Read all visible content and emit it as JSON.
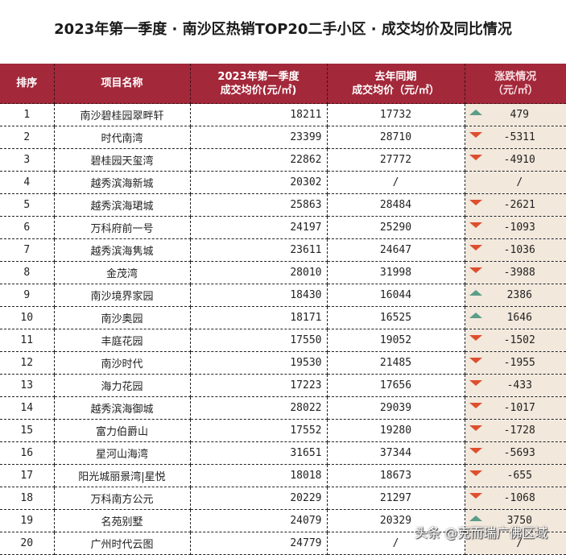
{
  "title": "2023年第一季度 · 南沙区热销TOP20二手小区 · 成交均价及同比情况",
  "headers": {
    "rank": "排序",
    "name": "项目名称",
    "cur_line1": "2023年第一季度",
    "cur_line2": "成交均价(元/㎡)",
    "prev_line1": "去年同期",
    "prev_line2": "成交均价（元/㎡）",
    "chg_line1": "涨跌情况",
    "chg_line2": "（元/㎡）"
  },
  "colors": {
    "header_bg": "#a3283a",
    "change_bg": "#f2e8dc",
    "up": "#5a9e88",
    "down": "#de4f2e"
  },
  "rows": [
    {
      "rank": "1",
      "name": "南沙碧桂园翠畔轩",
      "cur": "18211",
      "prev": "17732",
      "chg": "479",
      "dir": "up"
    },
    {
      "rank": "2",
      "name": "时代南湾",
      "cur": "23399",
      "prev": "28710",
      "chg": "-5311",
      "dir": "down"
    },
    {
      "rank": "3",
      "name": "碧桂园天玺湾",
      "cur": "22862",
      "prev": "27772",
      "chg": "-4910",
      "dir": "down"
    },
    {
      "rank": "4",
      "name": "越秀滨海新城",
      "cur": "20302",
      "prev": "/",
      "chg": "/",
      "dir": "none"
    },
    {
      "rank": "5",
      "name": "越秀滨海珺城",
      "cur": "25863",
      "prev": "28484",
      "chg": "-2621",
      "dir": "down"
    },
    {
      "rank": "6",
      "name": "万科府前一号",
      "cur": "24197",
      "prev": "25290",
      "chg": "-1093",
      "dir": "down"
    },
    {
      "rank": "7",
      "name": "越秀滨海隽城",
      "cur": "23611",
      "prev": "24647",
      "chg": "-1036",
      "dir": "down"
    },
    {
      "rank": "8",
      "name": "金茂湾",
      "cur": "28010",
      "prev": "31998",
      "chg": "-3988",
      "dir": "down"
    },
    {
      "rank": "9",
      "name": "南沙境界家园",
      "cur": "18430",
      "prev": "16044",
      "chg": "2386",
      "dir": "up"
    },
    {
      "rank": "10",
      "name": "南沙奥园",
      "cur": "18171",
      "prev": "16525",
      "chg": "1646",
      "dir": "up"
    },
    {
      "rank": "11",
      "name": "丰庭花园",
      "cur": "17550",
      "prev": "19052",
      "chg": "-1502",
      "dir": "down"
    },
    {
      "rank": "12",
      "name": "南沙时代",
      "cur": "19530",
      "prev": "21485",
      "chg": "-1955",
      "dir": "down"
    },
    {
      "rank": "13",
      "name": "海力花园",
      "cur": "17223",
      "prev": "17656",
      "chg": "-433",
      "dir": "down"
    },
    {
      "rank": "14",
      "name": "越秀滨海御城",
      "cur": "28022",
      "prev": "29039",
      "chg": "-1017",
      "dir": "down"
    },
    {
      "rank": "15",
      "name": "富力伯爵山",
      "cur": "17552",
      "prev": "19280",
      "chg": "-1728",
      "dir": "down"
    },
    {
      "rank": "16",
      "name": "星河山海湾",
      "cur": "31651",
      "prev": "37344",
      "chg": "-5693",
      "dir": "down"
    },
    {
      "rank": "17",
      "name": "阳光城丽景湾|星悦",
      "cur": "18018",
      "prev": "18673",
      "chg": "-655",
      "dir": "down"
    },
    {
      "rank": "18",
      "name": "万科南方公元",
      "cur": "20229",
      "prev": "21297",
      "chg": "-1068",
      "dir": "down"
    },
    {
      "rank": "19",
      "name": "名苑别墅",
      "cur": "24079",
      "prev": "20329",
      "chg": "3750",
      "dir": "up"
    },
    {
      "rank": "20",
      "name": "广州时代云图",
      "cur": "24779",
      "prev": "/",
      "chg": "/",
      "dir": "none"
    }
  ],
  "watermark": "头条 @克而瑞广佛区域"
}
